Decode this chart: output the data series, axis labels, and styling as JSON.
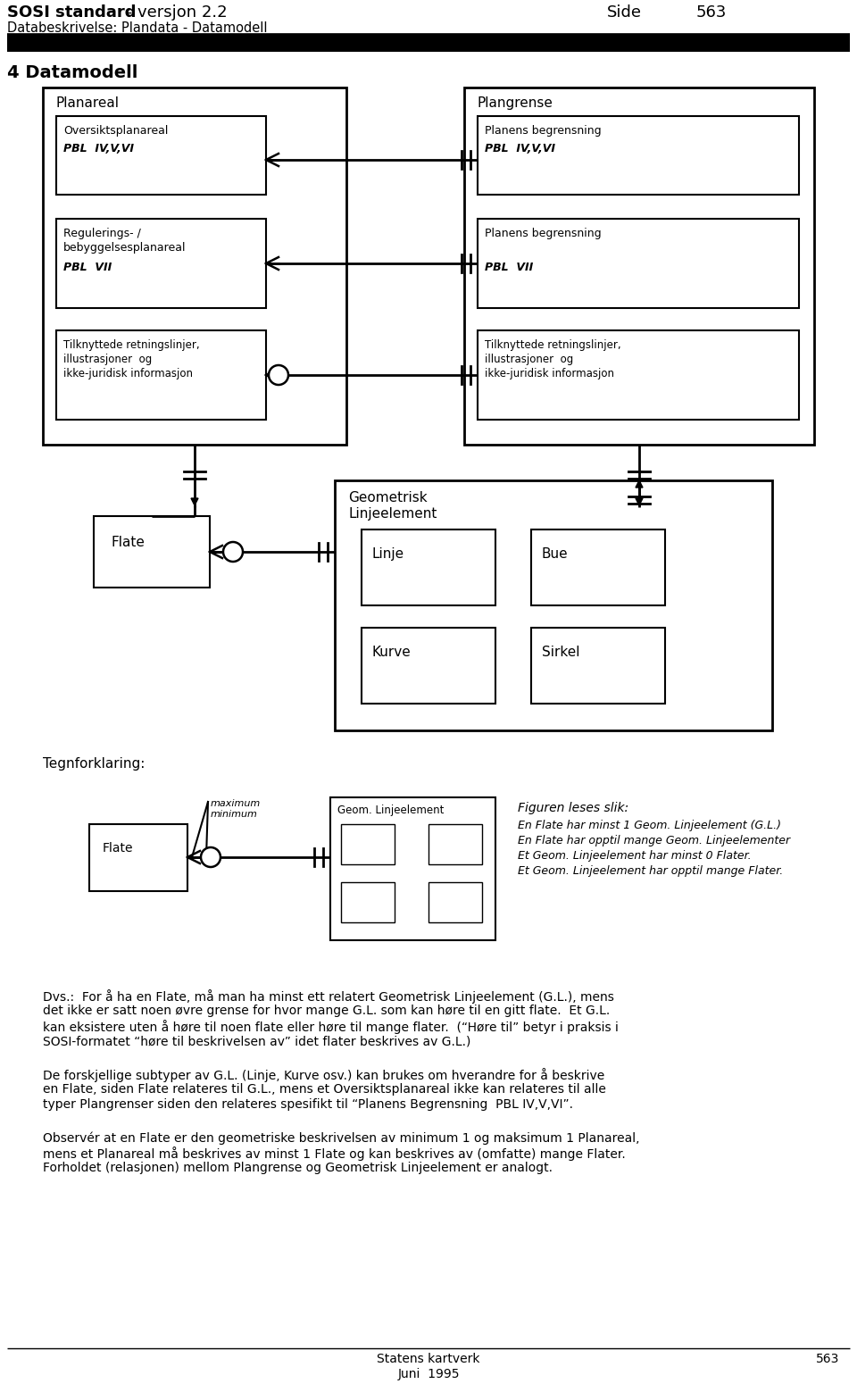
{
  "title_bold": "SOSI standard",
  "title_rest": " - versjon 2.2",
  "subtitle": "Databeskrivelse: Plandata - Datamodell",
  "side_label": "Side",
  "page_number": "563",
  "section_title": "4 Datamodell",
  "bg_color": "#ffffff",
  "footer_center1": "Statens kartverk",
  "footer_center2": "Juni  1995",
  "footer_page": "563",
  "para1a": "Dvs.:  For å ha en Flate, må man ha minst ett relatert Geometrisk Linjeelement (G.L.), mens",
  "para1b": "det ikke er satt noen øvre grense for hvor mange G.L. som kan høre til en gitt flate.  Et G.L.",
  "para1c": "kan eksistere uten å høre til noen flate eller høre til mange flater.  (“Høre til” betyr i praksis i",
  "para1d": "SOSI-formatet “høre til beskrivelsen av” idet flater beskrives av G.L.)",
  "para2a": "De forskjellige subtyper av G.L. (Linje, Kurve osv.) kan brukes om hverandre for å beskrive",
  "para2b": "en Flate, siden Flate relateres til G.L., mens et Oversiktsplanareal ikke kan relateres til alle",
  "para2c": "typer Plangrenser siden den relateres spesifikt til “Planens Begrensning  PBL IV,V,VI”.",
  "para3a": "Observér at en Flate er den geometriske beskrivelsen av minimum 1 og maksimum 1 Planareal,",
  "para3b": "mens et Planareal må beskrives av minst 1 Flate og kan beskrives av (omfatte) mange Flater.",
  "para3c": "Forholdet (relasjonen) mellom Plangrense og Geometrisk Linjeelement er analogt."
}
